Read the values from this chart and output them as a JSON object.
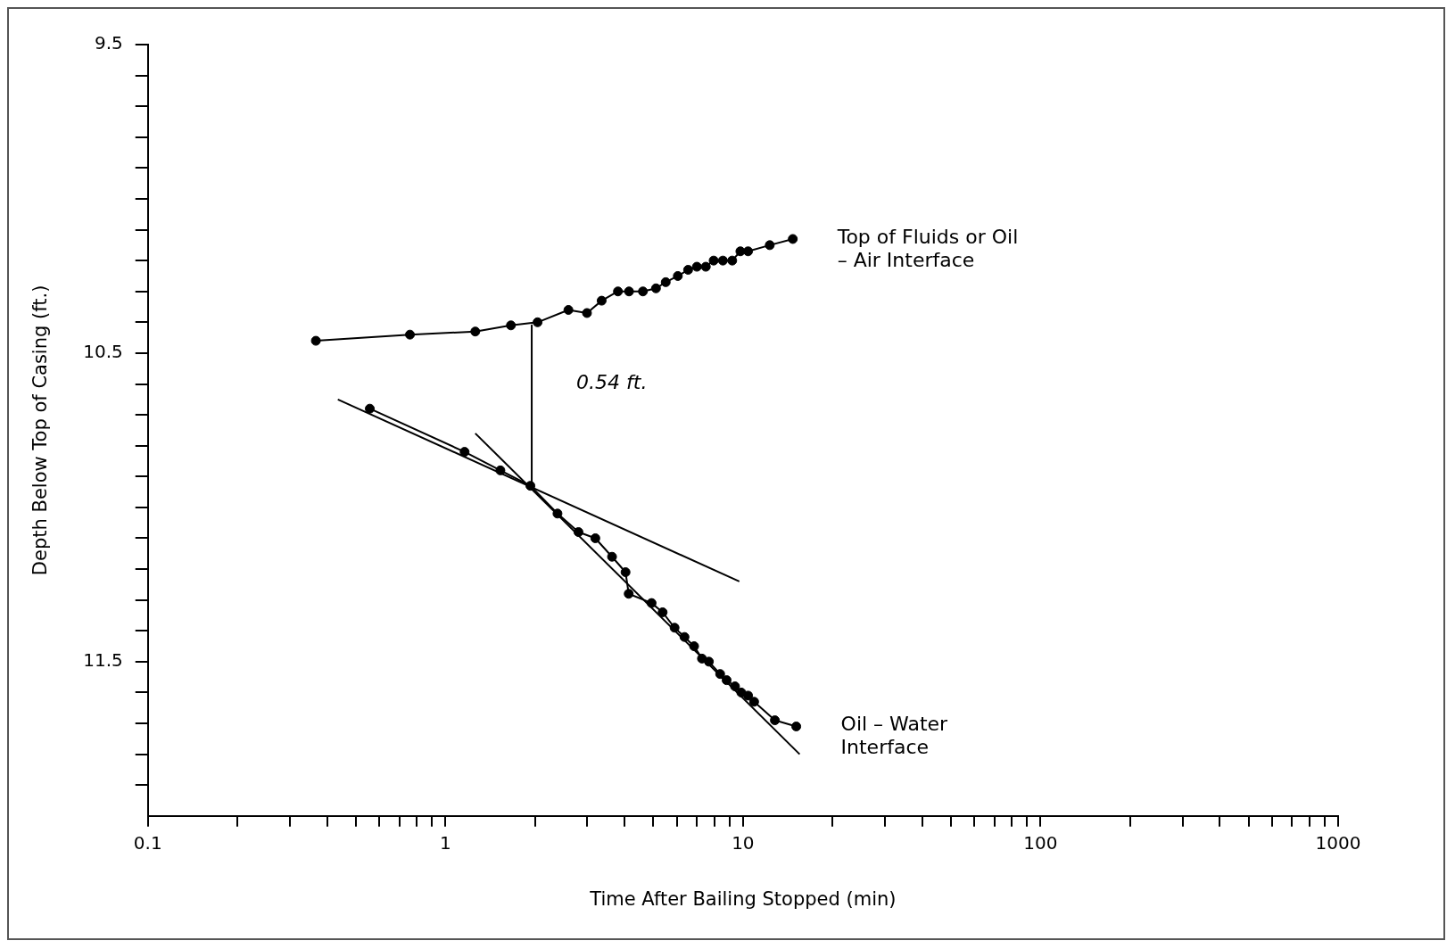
{
  "chart_data": {
    "type": "line",
    "xlabel": "Time After Bailing Stopped (min)",
    "ylabel": "Depth Below Top of Casing (ft.)",
    "log": "x",
    "xlim": [
      0.1,
      1000
    ],
    "xticks": [
      0.1,
      {
        "value": 0.2,
        "label": null
      },
      {
        "value": 0.3,
        "label": null
      },
      {
        "value": 0.4,
        "label": null
      },
      {
        "value": 0.5,
        "label": null
      },
      {
        "value": 0.6,
        "label": null
      },
      {
        "value": 0.7,
        "label": null
      },
      {
        "value": 0.8,
        "label": null
      },
      {
        "value": 0.9,
        "label": null
      },
      1,
      {
        "value": 2,
        "label": null
      },
      {
        "value": 3,
        "label": null
      },
      {
        "value": 4,
        "label": null
      },
      {
        "value": 5,
        "label": null
      },
      {
        "value": 6,
        "label": null
      },
      {
        "value": 7,
        "label": null
      },
      {
        "value": 8,
        "label": null
      },
      {
        "value": 9,
        "label": null
      },
      10,
      {
        "value": 20,
        "label": null
      },
      {
        "value": 30,
        "label": null
      },
      {
        "value": 40,
        "label": null
      },
      {
        "value": 50,
        "label": null
      },
      {
        "value": 60,
        "label": null
      },
      {
        "value": 70,
        "label": null
      },
      {
        "value": 80,
        "label": null
      },
      {
        "value": 90,
        "label": null
      },
      100,
      {
        "value": 200,
        "label": null
      },
      {
        "value": 300,
        "label": null
      },
      {
        "value": 400,
        "label": null
      },
      {
        "value": 500,
        "label": null
      },
      {
        "value": 600,
        "label": null
      },
      {
        "value": 700,
        "label": null
      },
      {
        "value": 800,
        "label": null
      },
      {
        "value": 900,
        "label": null
      },
      1000
    ],
    "ylim": [
      12,
      9.5
    ],
    "yticks": [
      9.5,
      {
        "value": 9.6,
        "label": null
      },
      {
        "value": 9.7,
        "label": null
      },
      {
        "value": 9.8,
        "label": null
      },
      {
        "value": 9.9,
        "label": null
      },
      {
        "value": 10,
        "label": null
      },
      {
        "value": 10.1,
        "label": null
      },
      {
        "value": 10.2,
        "label": null
      },
      {
        "value": 10.3,
        "label": null
      },
      {
        "value": 10.4,
        "label": null
      },
      10.5,
      {
        "value": 10.6,
        "label": null
      },
      {
        "value": 10.7,
        "label": null
      },
      {
        "value": 10.8,
        "label": null
      },
      {
        "value": 10.9,
        "label": null
      },
      {
        "value": 11,
        "label": null
      },
      {
        "value": 11.1,
        "label": null
      },
      {
        "value": 11.2,
        "label": null
      },
      {
        "value": 11.3,
        "label": null
      },
      {
        "value": 11.4,
        "label": null
      },
      11.5,
      {
        "value": 11.6,
        "label": null
      },
      {
        "value": 11.7,
        "label": null
      },
      {
        "value": 11.8,
        "label": null
      },
      {
        "value": 11.9,
        "label": null
      }
    ],
    "annotations": [
      "0.54 ft."
    ],
    "series": [
      {
        "name": "Top of Fluids or Oil – Air Interface",
        "color": "#000000",
        "marker": "circle",
        "x": [
          0.367,
          0.76,
          1.26,
          1.66,
          2.04,
          2.59,
          2.99,
          3.35,
          3.8,
          4.14,
          4.61,
          5.1,
          5.5,
          6.04,
          6.54,
          7.0,
          7.5,
          7.97,
          8.56,
          9.2,
          9.8,
          10.4,
          12.3,
          14.7
        ],
        "values": [
          10.46,
          10.44,
          10.43,
          10.41,
          10.4,
          10.36,
          10.37,
          10.33,
          10.3,
          10.3,
          10.3,
          10.29,
          10.27,
          10.25,
          10.23,
          10.22,
          10.22,
          10.2,
          10.2,
          10.2,
          10.17,
          10.17,
          10.15,
          10.13
        ]
      },
      {
        "name": "Oil – Water Interface",
        "color": "#000000",
        "marker": "circle",
        "x": [
          0.557,
          1.16,
          1.53,
          1.93,
          2.38,
          2.8,
          3.19,
          3.63,
          4.03,
          4.13,
          4.93,
          5.37,
          5.89,
          6.36,
          6.85,
          7.28,
          7.68,
          8.38,
          8.81,
          9.4,
          9.87,
          10.4,
          10.9,
          12.8,
          15.1
        ],
        "values": [
          10.68,
          10.82,
          10.88,
          10.93,
          11.02,
          11.08,
          11.1,
          11.16,
          11.21,
          11.28,
          11.31,
          11.34,
          11.39,
          11.42,
          11.45,
          11.49,
          11.5,
          11.54,
          11.56,
          11.58,
          11.6,
          11.61,
          11.63,
          11.69,
          11.71
        ]
      },
      {
        "type": "line",
        "color": "#000000",
        "marker": "none",
        "x": [
          0.435,
          9.72
        ],
        "values": [
          10.65,
          11.24
        ]
      },
      {
        "type": "line",
        "color": "#000000",
        "marker": "none",
        "x": [
          1.26,
          15.5
        ],
        "values": [
          10.76,
          11.8
        ]
      },
      {
        "type": "line",
        "color": "#000000",
        "marker": "none",
        "x": [
          1.95,
          1.95
        ],
        "values": [
          10.41,
          10.92
        ]
      }
    ]
  }
}
